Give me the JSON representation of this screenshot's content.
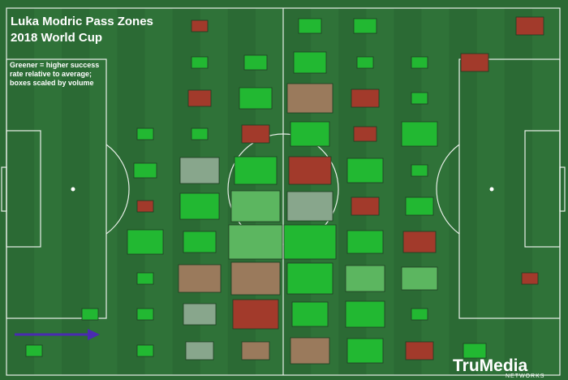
{
  "header": {
    "title": "Luka Modric Pass Zones",
    "subtitle": "2018 World Cup"
  },
  "note": [
    "Greener = higher success",
    "rate relative to average;",
    "boxes scaled by volume"
  ],
  "logo": {
    "brand": "TruMedia",
    "tagline": "NETWORKS"
  }
}
